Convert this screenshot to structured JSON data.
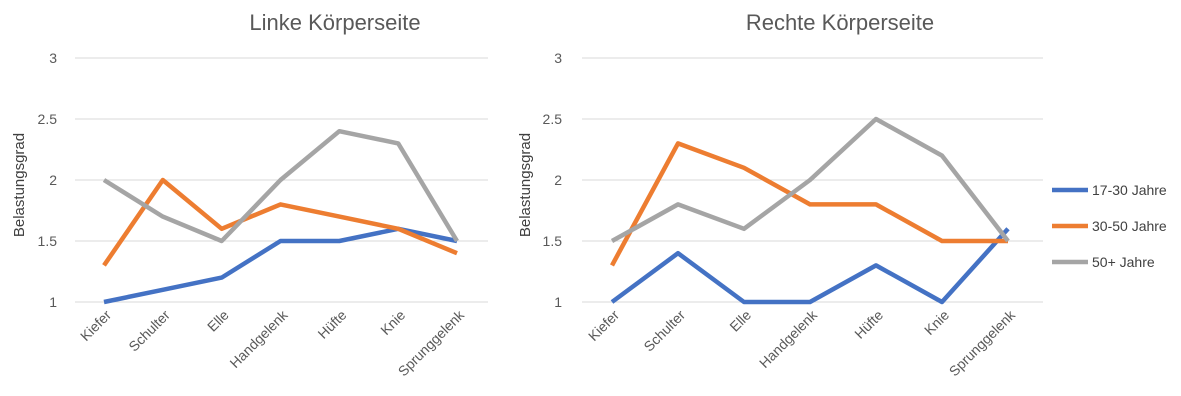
{
  "chart_data": [
    {
      "type": "line",
      "title": "Linke Körperseite",
      "xlabel": "",
      "ylabel": "Belastungsgrad",
      "ylim": [
        1,
        3
      ],
      "yticks": [
        "1",
        "1.5",
        "2",
        "2.5",
        "3"
      ],
      "categories": [
        "Kiefer",
        "Schulter",
        "Elle",
        "Handgelenk",
        "Hüfte",
        "Knie",
        "Sprunggelenk"
      ],
      "grid": true,
      "series": [
        {
          "name": "17-30 Jahre",
          "color": "#4472c4",
          "values": [
            1.0,
            1.1,
            1.2,
            1.5,
            1.5,
            1.6,
            1.5
          ]
        },
        {
          "name": "30-50 Jahre",
          "color": "#ed7d31",
          "values": [
            1.3,
            2.0,
            1.6,
            1.8,
            1.7,
            1.6,
            1.4
          ]
        },
        {
          "name": "50+ Jahre",
          "color": "#a5a5a5",
          "values": [
            2.0,
            1.7,
            1.5,
            2.0,
            2.4,
            2.3,
            1.5
          ]
        }
      ]
    },
    {
      "type": "line",
      "title": "Rechte Körperseite",
      "xlabel": "",
      "ylabel": "Belastungsgrad",
      "ylim": [
        1,
        3
      ],
      "yticks": [
        "1",
        "1.5",
        "2",
        "2.5",
        "3"
      ],
      "categories": [
        "Kiefer",
        "Schulter",
        "Elle",
        "Handgelenk",
        "Hüfte",
        "Knie",
        "Sprunggelenk"
      ],
      "grid": true,
      "legend": "right",
      "series": [
        {
          "name": "17-30 Jahre",
          "color": "#4472c4",
          "values": [
            1.0,
            1.4,
            1.0,
            1.0,
            1.3,
            1.0,
            1.6
          ]
        },
        {
          "name": "30-50 Jahre",
          "color": "#ed7d31",
          "values": [
            1.3,
            2.3,
            2.1,
            1.8,
            1.8,
            1.5,
            1.5
          ]
        },
        {
          "name": "50+ Jahre",
          "color": "#a5a5a5",
          "values": [
            1.5,
            1.8,
            1.6,
            2.0,
            2.5,
            2.2,
            1.5
          ]
        }
      ]
    }
  ],
  "legend": {
    "items": [
      {
        "label": "17-30 Jahre",
        "color": "#4472c4"
      },
      {
        "label": "30-50 Jahre",
        "color": "#ed7d31"
      },
      {
        "label": "50+ Jahre",
        "color": "#a5a5a5"
      }
    ]
  }
}
